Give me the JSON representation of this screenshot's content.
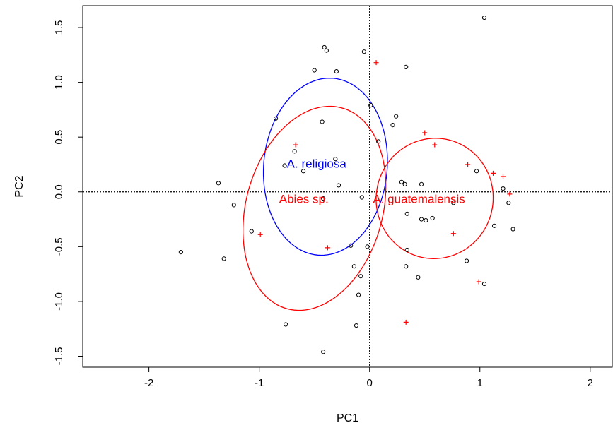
{
  "chart_data": {
    "type": "scatter",
    "title": "",
    "xlabel": "PC1",
    "ylabel": "PC2",
    "xlim": [
      -2.6,
      2.2
    ],
    "ylim": [
      -1.6,
      1.7
    ],
    "x_ticks": [
      -2,
      -1,
      0,
      1,
      2
    ],
    "y_ticks": [
      -1.5,
      -1.0,
      -0.5,
      0.0,
      0.5,
      1.0,
      1.5
    ],
    "x_tick_labels": [
      "-2",
      "-1",
      "0",
      "1",
      "2"
    ],
    "y_tick_labels": [
      "-1.5",
      "-1.0",
      "-0.5",
      "0.0",
      "0.5",
      "1.0",
      "1.5"
    ],
    "reference_lines": {
      "x": 0,
      "y": 0,
      "style": "dotted"
    },
    "grid": false,
    "legend": "none",
    "series": [
      {
        "marker": "circle",
        "color": "#000000",
        "points": [
          [
            1.04,
            1.59
          ],
          [
            -0.41,
            1.32
          ],
          [
            -0.39,
            1.29
          ],
          [
            -0.05,
            1.28
          ],
          [
            -0.5,
            1.11
          ],
          [
            -0.3,
            1.1
          ],
          [
            0.33,
            1.14
          ],
          [
            0.01,
            0.79
          ],
          [
            0.24,
            0.69
          ],
          [
            0.21,
            0.61
          ],
          [
            -0.85,
            0.67
          ],
          [
            -0.43,
            0.64
          ],
          [
            0.08,
            0.46
          ],
          [
            -0.68,
            0.37
          ],
          [
            -0.31,
            0.3
          ],
          [
            -0.77,
            0.24
          ],
          [
            -0.6,
            0.19
          ],
          [
            0.97,
            0.19
          ],
          [
            -1.37,
            0.08
          ],
          [
            -0.28,
            0.06
          ],
          [
            0.29,
            0.09
          ],
          [
            0.32,
            0.07
          ],
          [
            0.47,
            0.07
          ],
          [
            1.21,
            0.03
          ],
          [
            -0.42,
            -0.06
          ],
          [
            -0.07,
            -0.05
          ],
          [
            -1.23,
            -0.12
          ],
          [
            0.34,
            -0.2
          ],
          [
            1.26,
            -0.1
          ],
          [
            0.76,
            -0.1
          ],
          [
            0.57,
            -0.24
          ],
          [
            0.47,
            -0.25
          ],
          [
            0.51,
            -0.26
          ],
          [
            1.13,
            -0.31
          ],
          [
            1.3,
            -0.34
          ],
          [
            -1.07,
            -0.36
          ],
          [
            -0.17,
            -0.49
          ],
          [
            -0.02,
            -0.5
          ],
          [
            0.34,
            -0.53
          ],
          [
            -1.71,
            -0.55
          ],
          [
            -1.32,
            -0.61
          ],
          [
            0.88,
            -0.63
          ],
          [
            -0.14,
            -0.68
          ],
          [
            0.33,
            -0.68
          ],
          [
            -0.08,
            -0.77
          ],
          [
            0.44,
            -0.78
          ],
          [
            1.04,
            -0.84
          ],
          [
            -0.1,
            -0.94
          ],
          [
            -0.76,
            -1.21
          ],
          [
            -0.12,
            -1.22
          ],
          [
            -0.42,
            -1.46
          ]
        ]
      },
      {
        "marker": "plus",
        "color": "#ff0000",
        "points": [
          [
            0.06,
            1.18
          ],
          [
            0.5,
            0.54
          ],
          [
            0.59,
            0.43
          ],
          [
            -0.67,
            0.43
          ],
          [
            0.89,
            0.25
          ],
          [
            1.12,
            0.17
          ],
          [
            1.21,
            0.14
          ],
          [
            1.27,
            -0.02
          ],
          [
            -0.99,
            -0.39
          ],
          [
            -0.38,
            -0.51
          ],
          [
            0.76,
            -0.38
          ],
          [
            0.99,
            -0.82
          ],
          [
            0.33,
            -1.19
          ]
        ]
      }
    ],
    "ellipses": [
      {
        "label": "A. religiosa",
        "color": "#0000ff",
        "cx": -0.4,
        "cy": 0.23,
        "rx": 0.56,
        "ry": 0.81,
        "angle_deg": -5,
        "label_x": -0.75,
        "label_y": 0.22
      },
      {
        "label": "Abies sp.",
        "color": "#ff0000",
        "cx": -0.5,
        "cy": -0.15,
        "rx": 0.62,
        "ry": 0.95,
        "angle_deg": -15,
        "label_x": -0.82,
        "label_y": -0.1
      },
      {
        "label": "A. guatemalensis",
        "color": "#ff0000",
        "cx": 0.59,
        "cy": -0.06,
        "rx": 0.53,
        "ry": 0.55,
        "angle_deg": -10,
        "label_x": 0.03,
        "label_y": -0.1
      }
    ]
  }
}
